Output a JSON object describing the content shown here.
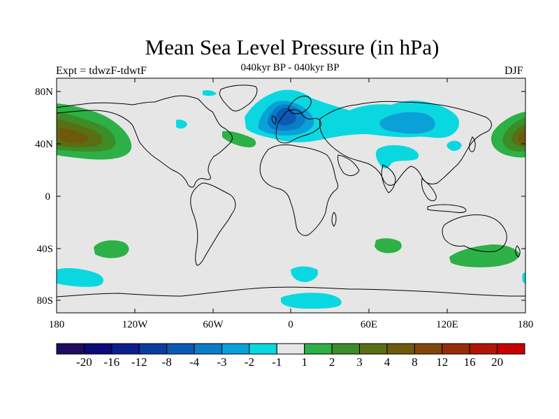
{
  "title": "Mean Sea Level Pressure (in hPa)",
  "left_string": "Expt = tdwzF-tdwtF",
  "center_string": "040kyr BP - 040kyr BP",
  "right_string": "DJF",
  "map": {
    "projection": "cylindrical equidistant",
    "lon_range": [
      -180,
      180
    ],
    "lat_range": [
      -90,
      90
    ],
    "background_color": "#e6e6e6",
    "coastline_color": "#000000",
    "lat_tick_labels": [
      "80N",
      "40N",
      "0",
      "40S",
      "80S"
    ],
    "lon_tick_labels": [
      "180",
      "120W",
      "60W",
      "0",
      "60E",
      "120E",
      "180"
    ]
  },
  "colorbar": {
    "colors": [
      "#1e0c5e",
      "#0a0a78",
      "#0c1e8c",
      "#0c3ca0",
      "#0a5ab4",
      "#0a7dc8",
      "#0aa0d8",
      "#0ad8e0",
      "#e6e6e6",
      "#2db045",
      "#3c8c28",
      "#5a6e14",
      "#6e5a0a",
      "#82460a",
      "#962d0a",
      "#b4140a",
      "#c80000"
    ],
    "labels": [
      "-20",
      "-16",
      "-12",
      "-8",
      "-4",
      "-3",
      "-2",
      "-1",
      "1",
      "2",
      "3",
      "4",
      "8",
      "12",
      "16",
      "20"
    ]
  },
  "chart_data": {
    "type": "heatmap",
    "title": "Mean Sea Level Pressure (in hPa)",
    "subtitle": "040kyr BP - 040kyr BP",
    "season": "DJF",
    "experiment": "Expt = tdwzF-tdwtF",
    "contour_levels": [
      -20,
      -16,
      -12,
      -8,
      -4,
      -3,
      -2,
      -1,
      1,
      2,
      3,
      4,
      8,
      12,
      16,
      20
    ],
    "features": [
      {
        "region": "North Pacific (west of dateline)",
        "lon": 170,
        "lat": 45,
        "range": "4 to 8",
        "sign": "positive"
      },
      {
        "region": "North Pacific (east of dateline)",
        "lon": -160,
        "lat": 45,
        "range": "4 to 8",
        "sign": "positive"
      },
      {
        "region": "Northern Europe / Scandinavia",
        "lon": 0,
        "lat": 62,
        "range": "-4 to -8",
        "sign": "negative"
      },
      {
        "region": "Siberia",
        "lon": 90,
        "lat": 55,
        "range": "-1 to -3",
        "sign": "negative"
      },
      {
        "region": "Tibet",
        "lon": 75,
        "lat": 35,
        "range": "-1 to -2",
        "sign": "negative"
      },
      {
        "region": "North Atlantic",
        "lon": -40,
        "lat": 42,
        "range": "1 to 2",
        "sign": "positive"
      },
      {
        "region": "South Pacific",
        "lon": -135,
        "lat": -40,
        "range": "1 to 2",
        "sign": "positive"
      },
      {
        "region": "South Indian Ocean",
        "lon": 65,
        "lat": -38,
        "range": "1 to 2",
        "sign": "positive"
      },
      {
        "region": "South of Australia",
        "lon": 145,
        "lat": -45,
        "range": "1 to 2",
        "sign": "positive"
      },
      {
        "region": "South Pacific high latitudes",
        "lon": -140,
        "lat": -60,
        "range": "-1 to -2",
        "sign": "negative"
      },
      {
        "region": "Southern Ocean near Antarctica",
        "lon": 20,
        "lat": -78,
        "range": "-1 to -2",
        "sign": "negative"
      }
    ]
  }
}
